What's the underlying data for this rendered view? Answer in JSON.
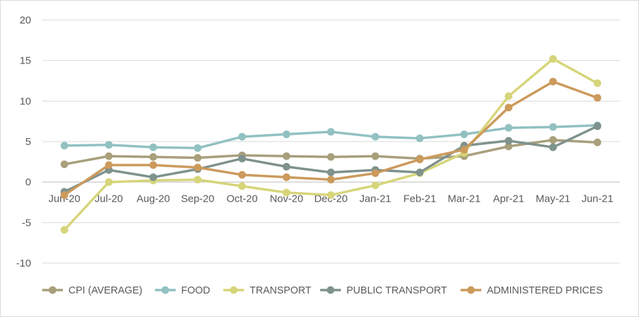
{
  "chart_data": {
    "type": "line",
    "title": "",
    "xlabel": "",
    "ylabel": "",
    "categories": [
      "Jun-20",
      "Jul-20",
      "Aug-20",
      "Sep-20",
      "Oct-20",
      "Nov-20",
      "Dec-20",
      "Jan-21",
      "Feb-21",
      "Mar-21",
      "Apr-21",
      "May-21",
      "Jun-21"
    ],
    "y_ticks": [
      "20",
      "15",
      "10",
      "5",
      "0",
      "-5",
      "-10"
    ],
    "ylim": [
      -10,
      20
    ],
    "grid": "horizontal",
    "legend_position": "bottom",
    "series": [
      {
        "name": "CPI (AVERAGE)",
        "color": "#a89f7b",
        "values": [
          2.2,
          3.2,
          3.1,
          3.0,
          3.3,
          3.2,
          3.1,
          3.2,
          2.9,
          3.2,
          4.4,
          5.2,
          4.9
        ]
      },
      {
        "name": "FOOD",
        "color": "#92c1c1",
        "values": [
          4.5,
          4.6,
          4.3,
          4.2,
          5.6,
          5.9,
          6.2,
          5.6,
          5.4,
          5.9,
          6.7,
          6.8,
          7.0
        ]
      },
      {
        "name": "TRANSPORT",
        "color": "#d6d57a",
        "values": [
          -5.9,
          0.0,
          0.2,
          0.3,
          -0.5,
          -1.3,
          -1.6,
          -0.4,
          1.1,
          3.6,
          10.6,
          15.2,
          12.2
        ]
      },
      {
        "name": "PUBLIC TRANSPORT",
        "color": "#7f928d",
        "values": [
          -1.2,
          1.5,
          0.6,
          1.6,
          2.9,
          1.9,
          1.2,
          1.5,
          1.2,
          4.5,
          5.1,
          4.3,
          6.9
        ]
      },
      {
        "name": "ADMINISTERED PRICES",
        "color": "#cc9a5c",
        "values": [
          -1.6,
          2.1,
          2.1,
          1.8,
          0.9,
          0.6,
          0.3,
          1.1,
          2.8,
          4.0,
          9.2,
          12.4,
          10.4
        ]
      }
    ]
  }
}
